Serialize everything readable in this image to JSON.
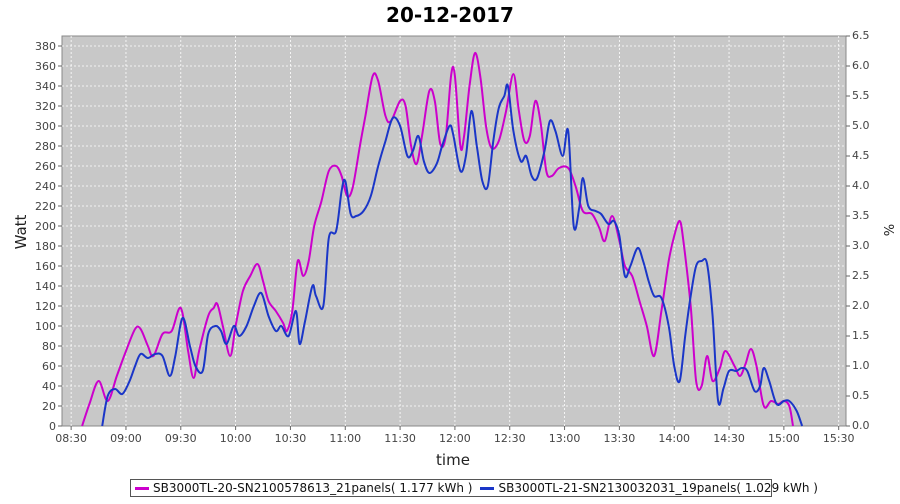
{
  "chart_data": {
    "type": "line",
    "title": "20-12-2017",
    "xlabel": "time",
    "ylabel": "Watt",
    "y2label": "%",
    "ylim": [
      0,
      390
    ],
    "y2lim": [
      0,
      6.5
    ],
    "x_ticks": [
      "08:30",
      "09:00",
      "09:30",
      "10:00",
      "10:30",
      "11:00",
      "11:30",
      "12:00",
      "12:30",
      "13:00",
      "13:30",
      "14:00",
      "14:30",
      "15:00",
      "15:30"
    ],
    "y_ticks": [
      0,
      20,
      40,
      60,
      80,
      100,
      120,
      140,
      160,
      180,
      200,
      220,
      240,
      260,
      280,
      300,
      320,
      340,
      360,
      380
    ],
    "y2_ticks": [
      "0.0",
      "0.5",
      "1.0",
      "1.5",
      "2.0",
      "2.5",
      "3.0",
      "3.5",
      "4.0",
      "4.5",
      "5.0",
      "5.5",
      "6.0",
      "6.5"
    ],
    "grid": true,
    "background": "#c8c8c8",
    "series": [
      {
        "name": "SB3000TL-20-SN2100578613_21panels( 1.177 kWh )",
        "color": "#cc00cc",
        "points": [
          [
            "08:36",
            0
          ],
          [
            "08:40",
            22
          ],
          [
            "08:45",
            45
          ],
          [
            "08:50",
            25
          ],
          [
            "08:55",
            50
          ],
          [
            "09:00",
            75
          ],
          [
            "09:05",
            97
          ],
          [
            "09:08",
            97
          ],
          [
            "09:12",
            80
          ],
          [
            "09:15",
            70
          ],
          [
            "09:20",
            92
          ],
          [
            "09:25",
            95
          ],
          [
            "09:30",
            118
          ],
          [
            "09:34",
            75
          ],
          [
            "09:37",
            48
          ],
          [
            "09:40",
            75
          ],
          [
            "09:45",
            110
          ],
          [
            "09:48",
            118
          ],
          [
            "09:50",
            122
          ],
          [
            "09:53",
            100
          ],
          [
            "09:57",
            70
          ],
          [
            "10:00",
            100
          ],
          [
            "10:04",
            135
          ],
          [
            "10:08",
            150
          ],
          [
            "10:12",
            162
          ],
          [
            "10:15",
            145
          ],
          [
            "10:18",
            125
          ],
          [
            "10:22",
            115
          ],
          [
            "10:26",
            103
          ],
          [
            "10:28",
            95
          ],
          [
            "10:31",
            115
          ],
          [
            "10:34",
            165
          ],
          [
            "10:37",
            150
          ],
          [
            "10:40",
            165
          ],
          [
            "10:43",
            200
          ],
          [
            "10:47",
            225
          ],
          [
            "10:51",
            255
          ],
          [
            "10:55",
            260
          ],
          [
            "10:58",
            250
          ],
          [
            "11:01",
            230
          ],
          [
            "11:04",
            238
          ],
          [
            "11:08",
            280
          ],
          [
            "11:11",
            310
          ],
          [
            "11:15",
            350
          ],
          [
            "11:18",
            345
          ],
          [
            "11:22",
            310
          ],
          [
            "11:25",
            305
          ],
          [
            "11:30",
            325
          ],
          [
            "11:33",
            320
          ],
          [
            "11:36",
            280
          ],
          [
            "11:39",
            262
          ],
          [
            "11:42",
            290
          ],
          [
            "11:46",
            335
          ],
          [
            "11:49",
            325
          ],
          [
            "11:52",
            282
          ],
          [
            "11:55",
            290
          ],
          [
            "11:58",
            352
          ],
          [
            "12:00",
            350
          ],
          [
            "12:03",
            280
          ],
          [
            "12:05",
            290
          ],
          [
            "12:08",
            340
          ],
          [
            "12:11",
            373
          ],
          [
            "12:14",
            348
          ],
          [
            "12:17",
            300
          ],
          [
            "12:20",
            278
          ],
          [
            "12:24",
            285
          ],
          [
            "12:28",
            315
          ],
          [
            "12:32",
            352
          ],
          [
            "12:35",
            315
          ],
          [
            "12:38",
            285
          ],
          [
            "12:41",
            290
          ],
          [
            "12:44",
            325
          ],
          [
            "12:47",
            302
          ],
          [
            "12:50",
            255
          ],
          [
            "12:53",
            250
          ],
          [
            "12:57",
            258
          ],
          [
            "13:02",
            258
          ],
          [
            "13:06",
            240
          ],
          [
            "13:10",
            215
          ],
          [
            "13:15",
            212
          ],
          [
            "13:19",
            198
          ],
          [
            "13:22",
            185
          ],
          [
            "13:26",
            210
          ],
          [
            "13:30",
            185
          ],
          [
            "13:33",
            160
          ],
          [
            "13:37",
            150
          ],
          [
            "13:41",
            125
          ],
          [
            "13:45",
            100
          ],
          [
            "13:49",
            70
          ],
          [
            "13:53",
            115
          ],
          [
            "13:57",
            165
          ],
          [
            "14:00",
            190
          ],
          [
            "14:03",
            205
          ],
          [
            "14:05",
            185
          ],
          [
            "14:09",
            120
          ],
          [
            "14:12",
            45
          ],
          [
            "14:15",
            40
          ],
          [
            "14:18",
            70
          ],
          [
            "14:21",
            45
          ],
          [
            "14:25",
            58
          ],
          [
            "14:28",
            75
          ],
          [
            "14:33",
            60
          ],
          [
            "14:36",
            50
          ],
          [
            "14:39",
            62
          ],
          [
            "14:42",
            77
          ],
          [
            "14:45",
            60
          ],
          [
            "14:49",
            20
          ],
          [
            "14:53",
            25
          ],
          [
            "14:57",
            22
          ],
          [
            "15:00",
            25
          ],
          [
            "15:03",
            20
          ],
          [
            "15:05",
            0
          ]
        ]
      },
      {
        "name": "SB3000TL-21-SN2130032031_19panels( 1.029 kWh )",
        "color": "#1a36c8",
        "points": [
          [
            "08:47",
            0
          ],
          [
            "08:50",
            30
          ],
          [
            "08:54",
            37
          ],
          [
            "08:58",
            32
          ],
          [
            "09:02",
            45
          ],
          [
            "09:05",
            60
          ],
          [
            "09:08",
            72
          ],
          [
            "09:12",
            68
          ],
          [
            "09:16",
            72
          ],
          [
            "09:20",
            70
          ],
          [
            "09:24",
            50
          ],
          [
            "09:27",
            70
          ],
          [
            "09:31",
            108
          ],
          [
            "09:35",
            80
          ],
          [
            "09:38",
            60
          ],
          [
            "09:42",
            55
          ],
          [
            "09:45",
            92
          ],
          [
            "09:49",
            100
          ],
          [
            "09:52",
            95
          ],
          [
            "09:55",
            82
          ],
          [
            "09:59",
            100
          ],
          [
            "10:02",
            90
          ],
          [
            "10:06",
            100
          ],
          [
            "10:10",
            120
          ],
          [
            "10:14",
            133
          ],
          [
            "10:18",
            110
          ],
          [
            "10:22",
            95
          ],
          [
            "10:25",
            100
          ],
          [
            "10:29",
            90
          ],
          [
            "10:33",
            115
          ],
          [
            "10:35",
            82
          ],
          [
            "10:38",
            105
          ],
          [
            "10:42",
            140
          ],
          [
            "10:44",
            130
          ],
          [
            "10:48",
            120
          ],
          [
            "10:51",
            188
          ],
          [
            "10:55",
            195
          ],
          [
            "10:58",
            235
          ],
          [
            "11:00",
            245
          ],
          [
            "11:03",
            212
          ],
          [
            "11:06",
            210
          ],
          [
            "11:10",
            215
          ],
          [
            "11:14",
            230
          ],
          [
            "11:18",
            260
          ],
          [
            "11:22",
            285
          ],
          [
            "11:26",
            308
          ],
          [
            "11:30",
            300
          ],
          [
            "11:34",
            270
          ],
          [
            "11:37",
            275
          ],
          [
            "11:40",
            290
          ],
          [
            "11:43",
            265
          ],
          [
            "11:46",
            253
          ],
          [
            "11:50",
            262
          ],
          [
            "11:53",
            280
          ],
          [
            "11:57",
            300
          ],
          [
            "11:59",
            292
          ],
          [
            "12:03",
            255
          ],
          [
            "12:06",
            270
          ],
          [
            "12:09",
            315
          ],
          [
            "12:12",
            280
          ],
          [
            "12:15",
            245
          ],
          [
            "12:18",
            240
          ],
          [
            "12:21",
            285
          ],
          [
            "12:24",
            318
          ],
          [
            "12:27",
            330
          ],
          [
            "12:29",
            340
          ],
          [
            "12:32",
            295
          ],
          [
            "12:36",
            265
          ],
          [
            "12:39",
            270
          ],
          [
            "12:42",
            250
          ],
          [
            "12:45",
            248
          ],
          [
            "12:49",
            275
          ],
          [
            "12:52",
            305
          ],
          [
            "12:55",
            295
          ],
          [
            "12:59",
            270
          ],
          [
            "13:02",
            295
          ],
          [
            "13:05",
            200
          ],
          [
            "13:08",
            218
          ],
          [
            "13:10",
            248
          ],
          [
            "13:13",
            220
          ],
          [
            "13:17",
            215
          ],
          [
            "13:20",
            212
          ],
          [
            "13:24",
            202
          ],
          [
            "13:27",
            205
          ],
          [
            "13:30",
            190
          ],
          [
            "13:33",
            150
          ],
          [
            "13:36",
            160
          ],
          [
            "13:40",
            178
          ],
          [
            "13:43",
            165
          ],
          [
            "13:46",
            145
          ],
          [
            "13:49",
            130
          ],
          [
            "13:53",
            128
          ],
          [
            "13:57",
            100
          ],
          [
            "14:00",
            60
          ],
          [
            "14:03",
            45
          ],
          [
            "14:06",
            90
          ],
          [
            "14:09",
            130
          ],
          [
            "14:12",
            160
          ],
          [
            "14:15",
            165
          ],
          [
            "14:18",
            162
          ],
          [
            "14:21",
            110
          ],
          [
            "14:24",
            25
          ],
          [
            "14:27",
            38
          ],
          [
            "14:30",
            55
          ],
          [
            "14:34",
            55
          ],
          [
            "14:37",
            58
          ],
          [
            "14:40",
            55
          ],
          [
            "14:44",
            35
          ],
          [
            "14:47",
            40
          ],
          [
            "14:49",
            58
          ],
          [
            "14:52",
            45
          ],
          [
            "14:56",
            22
          ],
          [
            "15:00",
            25
          ],
          [
            "15:03",
            25
          ],
          [
            "15:07",
            15
          ],
          [
            "15:10",
            0
          ]
        ]
      }
    ],
    "legend_position": "bottom"
  }
}
